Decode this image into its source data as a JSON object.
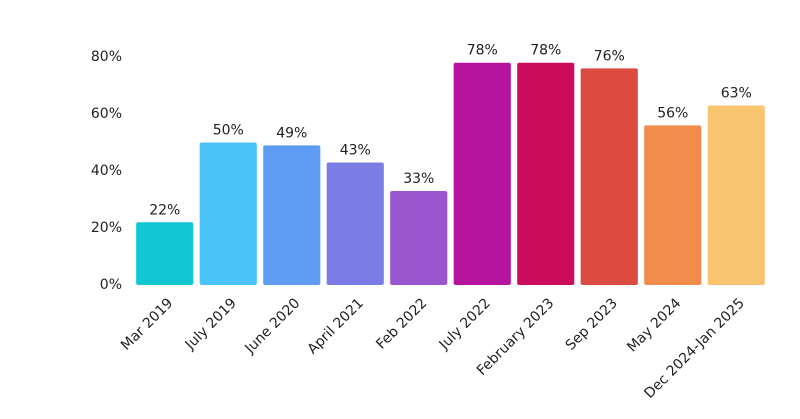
{
  "chart_data": {
    "type": "bar",
    "categories": [
      "Mar 2019",
      "July 2019",
      "June 2020",
      "April 2021",
      "Feb 2022",
      "July 2022",
      "February 2023",
      "Sep 2023",
      "May 2024",
      "Dec 2024-Jan 2025"
    ],
    "values": [
      22,
      50,
      49,
      43,
      33,
      78,
      78,
      76,
      56,
      63
    ],
    "value_labels": [
      "22%",
      "50%",
      "49%",
      "43%",
      "33%",
      "78%",
      "78%",
      "76%",
      "56%",
      "63%"
    ],
    "colors": [
      "#13c6d4",
      "#4cc3f8",
      "#5e9cf3",
      "#7c7de4",
      "#9a56cf",
      "#b6149f",
      "#cb0c5b",
      "#dc4b41",
      "#f18c4c",
      "#f9c46f"
    ],
    "ylim": [
      0,
      80
    ],
    "yticks": [
      {
        "value": 0,
        "label": "0%"
      },
      {
        "value": 20,
        "label": "20%"
      },
      {
        "value": 40,
        "label": "40%"
      },
      {
        "value": 60,
        "label": "60%"
      },
      {
        "value": 80,
        "label": "80%"
      }
    ],
    "grid": false
  }
}
